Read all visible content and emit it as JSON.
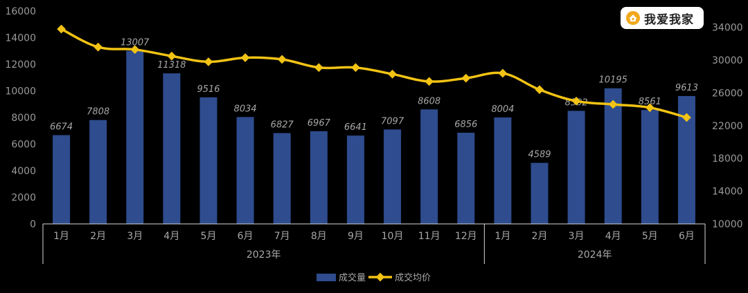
{
  "chart_data": {
    "type": "bar",
    "categories": [
      "1月",
      "2月",
      "3月",
      "4月",
      "5月",
      "6月",
      "7月",
      "8月",
      "9月",
      "10月",
      "11月",
      "12月",
      "1月",
      "2月",
      "3月",
      "4月",
      "5月",
      "6月"
    ],
    "groups": [
      {
        "label": "2023年",
        "count": 12
      },
      {
        "label": "2024年",
        "count": 6
      }
    ],
    "series": [
      {
        "name": "成交量",
        "kind": "bar",
        "axis": "left",
        "color": "#2E4C8E",
        "values": [
          6674,
          7808,
          13007,
          11318,
          9516,
          8034,
          6827,
          6967,
          6641,
          7097,
          8608,
          6856,
          8004,
          4589,
          8502,
          10195,
          8561,
          9613
        ],
        "data_labels": [
          "6674",
          "7808",
          "13007",
          "11318",
          "9516",
          "8034",
          "6827",
          "6967",
          "6641",
          "7097",
          "8608",
          "6856",
          "8004",
          "4589",
          "8502",
          "10195",
          "8561",
          "9613"
        ]
      },
      {
        "name": "成交均价",
        "kind": "line",
        "axis": "right",
        "color": "#F2C314",
        "values": [
          33800,
          31600,
          31300,
          30500,
          29800,
          30300,
          30100,
          29100,
          29100,
          28300,
          27400,
          27800,
          28400,
          26400,
          25000,
          24600,
          24200,
          23000
        ]
      }
    ],
    "y_left": {
      "min": 0,
      "max": 16000,
      "step": 2000,
      "ticks": [
        "0",
        "2000",
        "4000",
        "6000",
        "8000",
        "10000",
        "12000",
        "14000",
        "16000"
      ]
    },
    "y_right": {
      "min": 10000,
      "max": 36000,
      "step": 4000,
      "ticks": [
        "10000",
        "14000",
        "18000",
        "22000",
        "26000",
        "30000",
        "34000"
      ]
    },
    "legend_position": "bottom",
    "grid": false
  },
  "watermark": {
    "text": "我爱我家",
    "icon": "house-icon",
    "color": "#F2A81C"
  }
}
